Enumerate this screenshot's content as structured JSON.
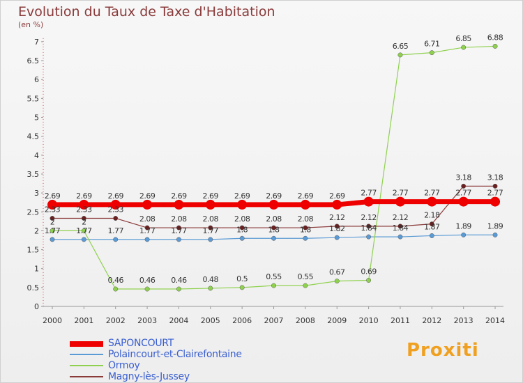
{
  "header": {
    "title": "Evolution du Taux de Taxe d'Habitation",
    "subtitle": "(en %)"
  },
  "logo": {
    "text": "Proxiti"
  },
  "chart_data": {
    "type": "line",
    "x": [
      "2000",
      "2001",
      "2002",
      "2003",
      "2004",
      "2005",
      "2006",
      "2007",
      "2008",
      "2009",
      "2010",
      "2011",
      "2012",
      "2013",
      "2014"
    ],
    "ylim": [
      0,
      7
    ],
    "yticks": [
      "0",
      "0.5",
      "1",
      "1.5",
      "2",
      "2.5",
      "3",
      "3.5",
      "4",
      "4.5",
      "5",
      "5.5",
      "6",
      "6.5",
      "7"
    ],
    "grid": false,
    "legend_position": "bottom-left",
    "series": [
      {
        "name": "SAPONCOURT",
        "color": "#ee0000",
        "values": [
          2.69,
          2.69,
          2.69,
          2.69,
          2.69,
          2.69,
          2.69,
          2.69,
          2.69,
          2.69,
          2.77,
          2.77,
          2.77,
          2.77,
          2.77
        ],
        "labels": [
          "2.69",
          "2.69",
          "2.69",
          "2.69",
          "2.69",
          "2.69",
          "2.69",
          "2.69",
          "2.69",
          "2.69",
          "2.77",
          "2.77",
          "2.77",
          "2.77",
          "2.77"
        ]
      },
      {
        "name": "Polaincourt-et-Clairefontaine",
        "color": "#5b9bd5",
        "values": [
          1.77,
          1.77,
          1.77,
          1.77,
          1.77,
          1.77,
          1.8,
          1.8,
          1.8,
          1.82,
          1.84,
          1.84,
          1.87,
          1.89,
          1.89
        ],
        "labels": [
          "1.77",
          "1.77",
          "1.77",
          "1.77",
          "1.77",
          "1.77",
          "1.8",
          "1.8",
          "1.8",
          "1.82",
          "1.84",
          "1.84",
          "1.87",
          "1.89",
          "1.89"
        ]
      },
      {
        "name": "Ormoy",
        "color": "#8fd14f",
        "values": [
          2,
          2,
          0.46,
          0.46,
          0.46,
          0.48,
          0.5,
          0.55,
          0.55,
          0.67,
          0.69,
          6.65,
          6.71,
          6.85,
          6.88
        ],
        "labels": [
          "2",
          "2",
          "0.46",
          "0.46",
          "0.46",
          "0.48",
          "0.5",
          "0.55",
          "0.55",
          "0.67",
          "0.69",
          "6.65",
          "6.71",
          "6.85",
          "6.88"
        ]
      },
      {
        "name": "Magny-lès-Jussey",
        "color": "#8b3a3a",
        "values": [
          2.33,
          2.33,
          2.33,
          2.08,
          2.08,
          2.08,
          2.08,
          2.08,
          2.08,
          2.12,
          2.12,
          2.12,
          2.18,
          3.18,
          3.18
        ],
        "labels": [
          "2.33",
          "2.33",
          "2.33",
          "2.08",
          "2.08",
          "2.08",
          "2.08",
          "2.08",
          "2.08",
          "2.12",
          "2.12",
          "2.12",
          "2.18",
          "3.18",
          "3.18"
        ]
      }
    ]
  }
}
